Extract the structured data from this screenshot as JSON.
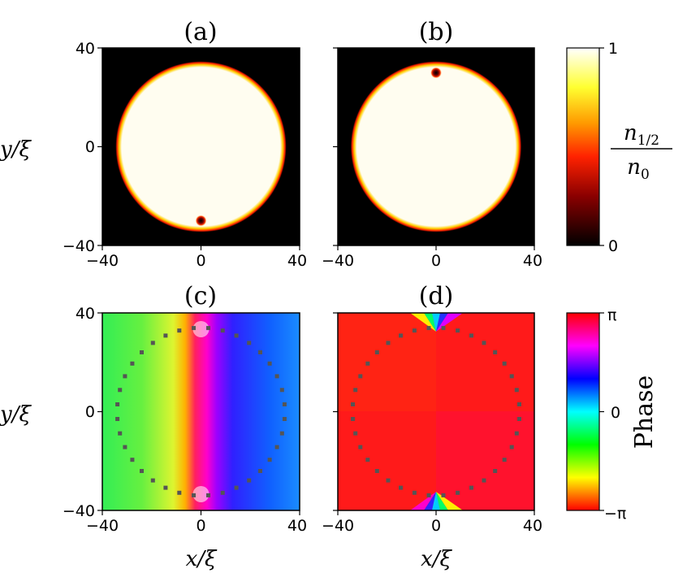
{
  "chart_data": [
    {
      "panel": "(a)",
      "type": "heatmap",
      "quantity": "density",
      "xlim": [
        -40,
        40
      ],
      "ylim": [
        -40,
        40
      ],
      "xticks": [
        "−40",
        "0",
        "40"
      ],
      "yticks": [
        "−40",
        "0",
        "40"
      ],
      "ylabel": "y/ξ",
      "disk_radius": 34,
      "vortex": {
        "x": 0,
        "y": -30
      }
    },
    {
      "panel": "(b)",
      "type": "heatmap",
      "quantity": "density",
      "xlim": [
        -40,
        40
      ],
      "ylim": [
        -40,
        40
      ],
      "xticks": [
        "−40",
        "0",
        "40"
      ],
      "disk_radius": 34,
      "vortex": {
        "x": 0,
        "y": 30
      }
    },
    {
      "panel": "(c)",
      "type": "heatmap",
      "quantity": "phase",
      "xlim": [
        -40,
        40
      ],
      "ylim": [
        -40,
        40
      ],
      "xticks": [
        "−40",
        "0",
        "40"
      ],
      "yticks": [
        "−40",
        "0",
        "40"
      ],
      "xlabel": "x/ξ",
      "ylabel": "y/ξ",
      "vortices": [
        {
          "x": 0,
          "y": 33,
          "charge": -1
        },
        {
          "x": 0,
          "y": -33,
          "charge": 1
        }
      ],
      "boundary_dots_radius": 34
    },
    {
      "panel": "(d)",
      "type": "heatmap",
      "quantity": "phase",
      "xlim": [
        -40,
        40
      ],
      "ylim": [
        -40,
        40
      ],
      "xticks": [
        "−40",
        "0",
        "40"
      ],
      "xlabel": "x/ξ",
      "vortices": [
        {
          "x": 0,
          "y": 33,
          "charge": 1
        },
        {
          "x": 0,
          "y": -33,
          "charge": 1
        }
      ],
      "boundary_dots_radius": 34
    }
  ],
  "colorbars": {
    "density": {
      "ticks": [
        "0",
        "1"
      ],
      "label_num": "n1/2",
      "label_den": "n0",
      "colors": [
        "#000000",
        "#8a0000",
        "#ff2200",
        "#ff9a00",
        "#ffff30",
        "#ffffff"
      ]
    },
    "phase": {
      "ticks": [
        "−π",
        "0",
        "π"
      ],
      "label": "Phase",
      "colors": [
        "#ff0000",
        "#ffff00",
        "#00ff00",
        "#00ffff",
        "#0000ff",
        "#ff00ff",
        "#ff0000"
      ]
    }
  }
}
